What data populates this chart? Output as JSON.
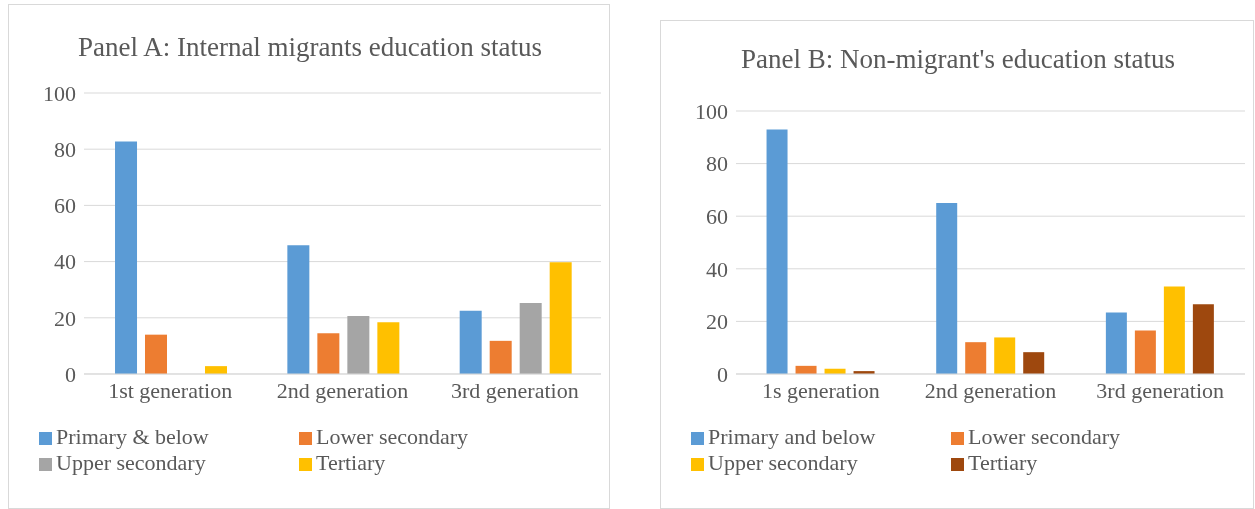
{
  "chart_data": [
    {
      "type": "bar",
      "title": "Panel A: Internal migrants education status",
      "categories": [
        "1st generation",
        "2nd generation",
        "3rd generation"
      ],
      "series": [
        {
          "name": "Primary & below",
          "color": "#5b9bd5",
          "values": [
            82.7,
            45.8,
            22.5
          ]
        },
        {
          "name": "Lower secondary",
          "color": "#ed7d31",
          "values": [
            14,
            14.5,
            11.8
          ]
        },
        {
          "name": "Upper secondary",
          "color": "#a5a5a5",
          "values": [
            0,
            20.6,
            25.3
          ]
        },
        {
          "name": "Tertiary",
          "color": "#ffc000",
          "values": [
            2.8,
            18.4,
            39.8
          ]
        }
      ],
      "ylim": [
        0,
        100
      ],
      "yticks": [
        0,
        20,
        40,
        60,
        80,
        100
      ],
      "grid": "y",
      "legend": "bottom"
    },
    {
      "type": "bar",
      "title": "Panel B: Non-migrant's education status",
      "categories": [
        "1s generation",
        "2nd generation",
        "3rd generation"
      ],
      "series": [
        {
          "name": "Primary and below",
          "color": "#5b9bd5",
          "values": [
            93,
            65,
            23.4
          ]
        },
        {
          "name": "Lower secondary",
          "color": "#ed7d31",
          "values": [
            3.1,
            12.1,
            16.5
          ]
        },
        {
          "name": "Upper secondary",
          "color": "#ffc000",
          "values": [
            2,
            13.9,
            33.3
          ]
        },
        {
          "name": "Tertiary",
          "color": "#9e480e",
          "values": [
            1.1,
            8.3,
            26.5
          ]
        }
      ],
      "ylim": [
        0,
        100
      ],
      "yticks": [
        0,
        20,
        40,
        60,
        80,
        100
      ],
      "grid": "y",
      "legend": "bottom"
    }
  ]
}
